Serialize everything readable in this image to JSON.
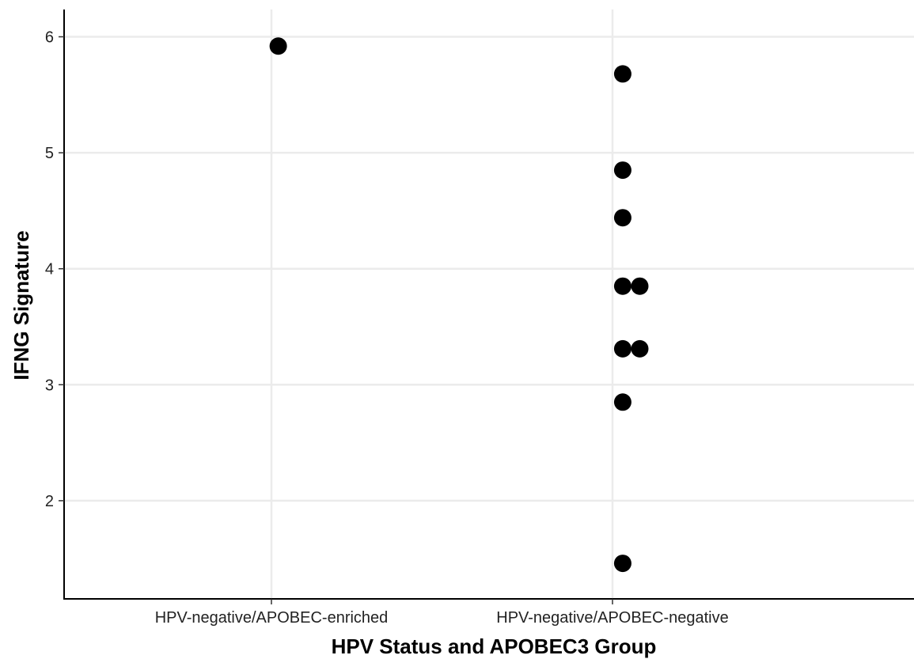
{
  "chart_data": {
    "type": "scatter",
    "title": "",
    "xlabel": "HPV Status and APOBEC3 Group",
    "ylabel": "IFNG Signature",
    "categories": [
      "HPV-negative/APOBEC-enriched",
      "HPV-negative/APOBEC-negative"
    ],
    "ylim": [
      1.3,
      6.22
    ],
    "yticks": [
      2,
      3,
      4,
      5,
      6
    ],
    "grid": true,
    "legend": "none",
    "colors": {
      "point": "#000000",
      "grid": "#ebebeb",
      "axis": "#000000"
    },
    "points": [
      {
        "category": "HPV-negative/APOBEC-enriched",
        "y": 5.92,
        "dodge": 0.02
      },
      {
        "category": "HPV-negative/APOBEC-negative",
        "y": 5.68,
        "dodge": 0.03
      },
      {
        "category": "HPV-negative/APOBEC-negative",
        "y": 4.85,
        "dodge": 0.03
      },
      {
        "category": "HPV-negative/APOBEC-negative",
        "y": 4.44,
        "dodge": 0.03
      },
      {
        "category": "HPV-negative/APOBEC-negative",
        "y": 3.85,
        "dodge": 0.03
      },
      {
        "category": "HPV-negative/APOBEC-negative",
        "y": 3.85,
        "dodge": 0.08
      },
      {
        "category": "HPV-negative/APOBEC-negative",
        "y": 3.31,
        "dodge": 0.03
      },
      {
        "category": "HPV-negative/APOBEC-negative",
        "y": 3.31,
        "dodge": 0.08
      },
      {
        "category": "HPV-negative/APOBEC-negative",
        "y": 2.85,
        "dodge": 0.03
      },
      {
        "category": "HPV-negative/APOBEC-negative",
        "y": 1.46,
        "dodge": 0.03
      }
    ]
  }
}
